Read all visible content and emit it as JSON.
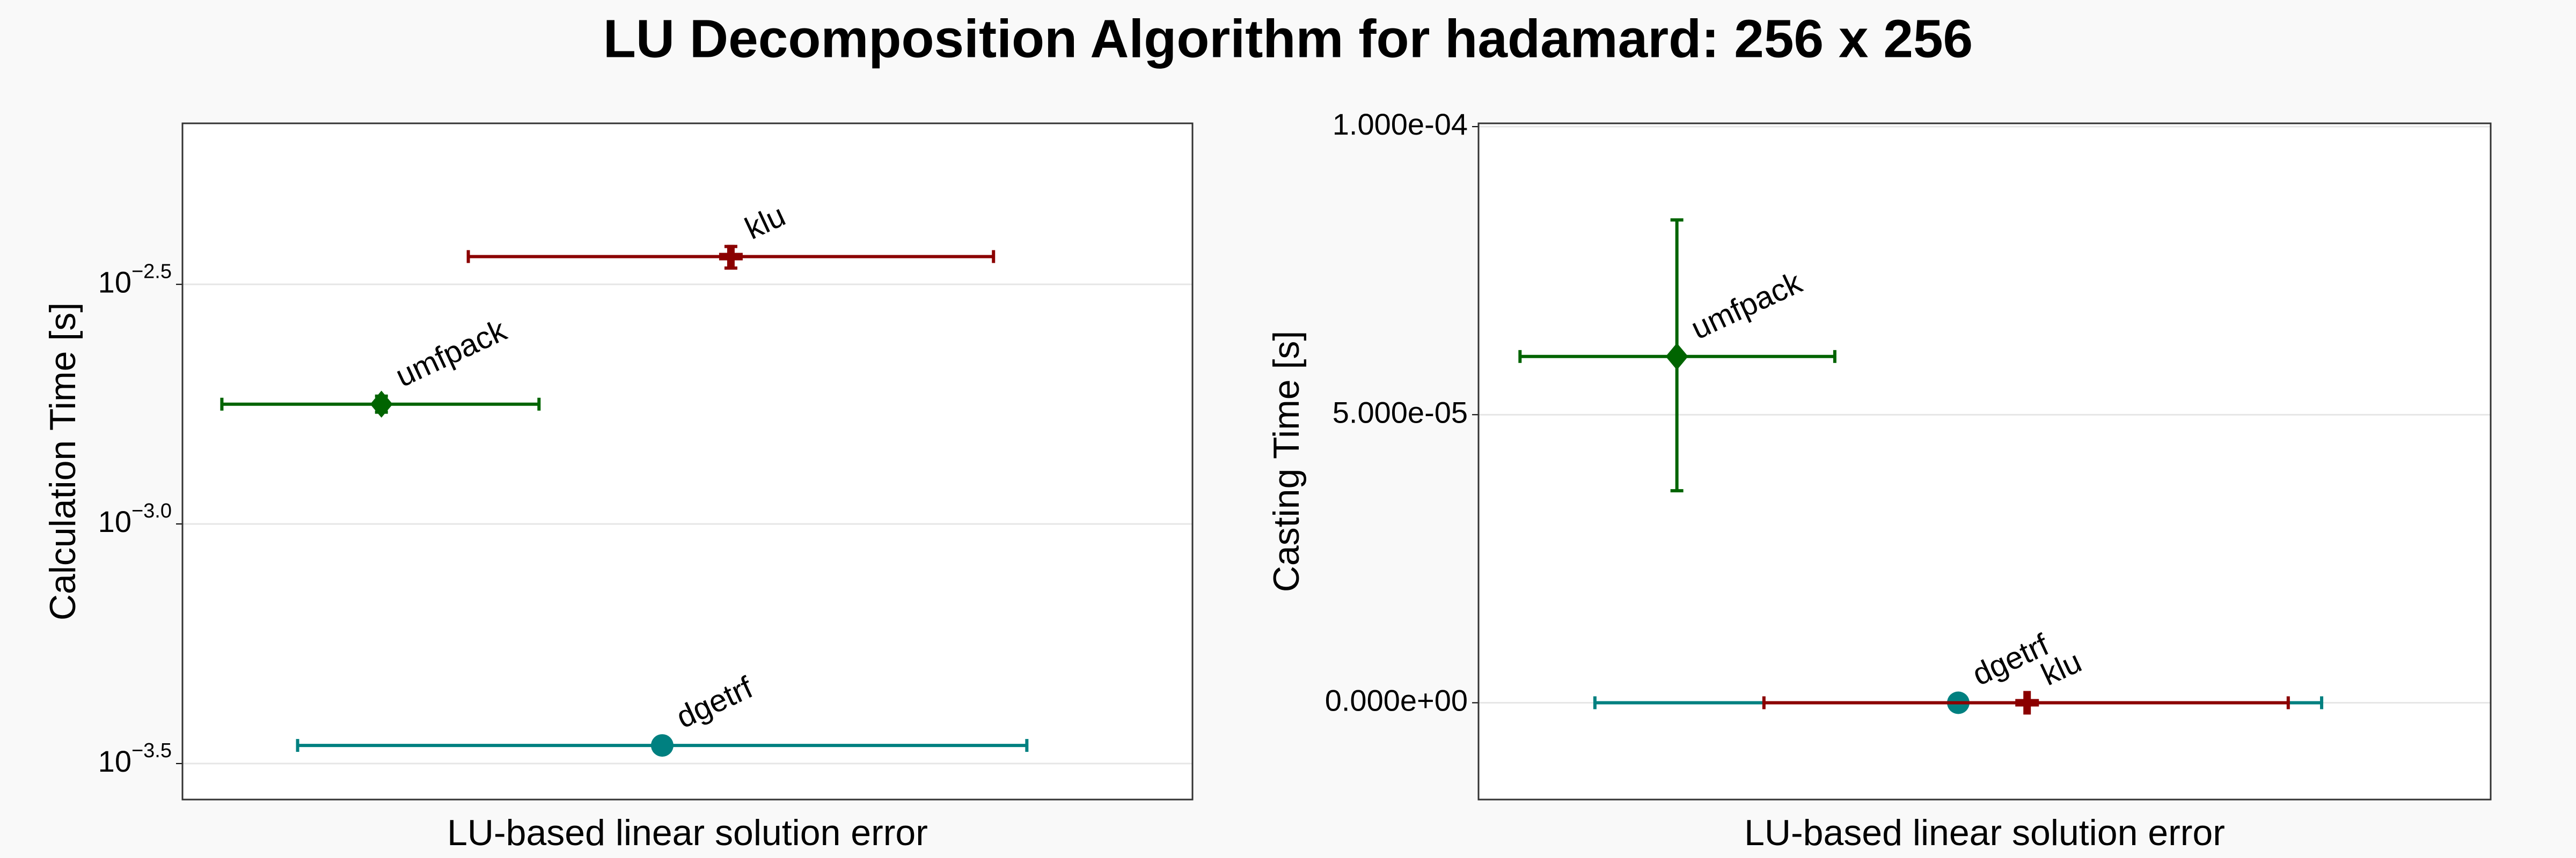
{
  "title": "LU Decomposition Algorithm for hadamard: 256 x 256",
  "chart_data": [
    {
      "type": "errorbar-scatter",
      "ylabel": "Calculation Time [s]",
      "xlabel": "LU-based linear solution error",
      "log_y": true,
      "grid": true,
      "xlim": [
        0,
        1
      ],
      "ylim": [
        0.000266,
        0.006855
      ],
      "yticks": [
        {
          "value": 0.00031623,
          "label": "10",
          "exponent": "−3.5"
        },
        {
          "value": 0.001,
          "label": "10",
          "exponent": "−3.0"
        },
        {
          "value": 0.0031623,
          "label": "10",
          "exponent": "−2.5"
        }
      ],
      "series": [
        {
          "name": "dgetrf",
          "color": "#008080",
          "marker": "circle",
          "x": 0.475,
          "y": 0.000345,
          "x_low": 0.114,
          "x_high": 0.836,
          "y_low": 0.000345,
          "y_high": 0.000345
        },
        {
          "name": "klu",
          "color": "#8b0000",
          "marker": "cross",
          "x": 0.543,
          "y": 0.003614,
          "x_low": 0.283,
          "x_high": 0.803,
          "y_low": 0.00342,
          "y_high": 0.003793
        },
        {
          "name": "umfpack",
          "color": "#006400",
          "marker": "diamond",
          "x": 0.197,
          "y": 0.001778,
          "x_low": 0.039,
          "x_high": 0.353,
          "y_low": 0.001711,
          "y_high": 0.001848
        }
      ]
    },
    {
      "type": "errorbar-scatter",
      "ylabel": "Casting Time [s]",
      "xlabel": "LU-based linear solution error",
      "log_y": false,
      "grid": true,
      "xlim": [
        0,
        1
      ],
      "ylim": [
        -1.68e-05,
        0.00010057
      ],
      "yticks": [
        {
          "value": 0,
          "label": "0.000e+00"
        },
        {
          "value": 5e-05,
          "label": "5.000e-05"
        },
        {
          "value": 0.0001,
          "label": "1.000e-04"
        }
      ],
      "series": [
        {
          "name": "dgetrf",
          "color": "#008080",
          "marker": "circle",
          "x": 0.474,
          "y": 0,
          "x_low": 0.115,
          "x_high": 0.833,
          "y_low": 0,
          "y_high": 0
        },
        {
          "name": "klu",
          "color": "#8b0000",
          "marker": "cross",
          "x": 0.542,
          "y": 0,
          "x_low": 0.282,
          "x_high": 0.8,
          "y_low": 0,
          "y_high": 0
        },
        {
          "name": "umfpack",
          "color": "#006400",
          "marker": "diamond",
          "x": 0.196,
          "y": 6.01e-05,
          "x_low": 0.041,
          "x_high": 0.352,
          "y_low": 3.68e-05,
          "y_high": 8.38e-05
        }
      ]
    }
  ]
}
